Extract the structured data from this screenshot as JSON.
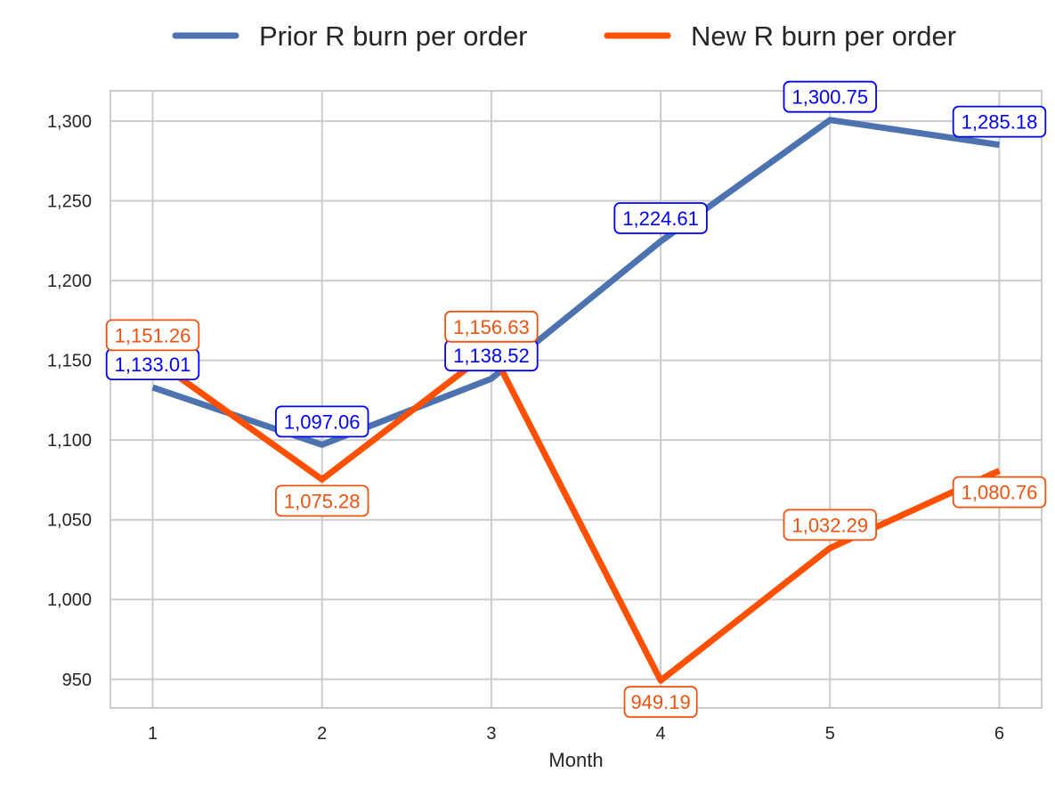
{
  "chart_data": {
    "type": "line",
    "title": "",
    "xlabel": "Month",
    "ylabel": "",
    "x": [
      1,
      2,
      3,
      4,
      5,
      6
    ],
    "x_tick_labels": [
      "1",
      "2",
      "3",
      "4",
      "5",
      "6"
    ],
    "y_ticks": [
      950,
      1000,
      1050,
      1100,
      1150,
      1200,
      1250,
      1300
    ],
    "y_tick_labels": [
      "950",
      "1,000",
      "1,050",
      "1,100",
      "1,150",
      "1,200",
      "1,250",
      "1,300"
    ],
    "xlim": [
      0.75,
      6.25
    ],
    "ylim": [
      932,
      1319
    ],
    "grid": true,
    "legend_position": "top-center",
    "series": [
      {
        "name": "Prior R burn per order",
        "color": "#4c72b0",
        "label_color": "#0000ff",
        "values": [
          1133.01,
          1097.06,
          1138.52,
          1224.61,
          1300.75,
          1285.18
        ],
        "data_labels": [
          "1,133.01",
          "1,097.06",
          "1,138.52",
          "1,224.61",
          "1,300.75",
          "1,285.18"
        ]
      },
      {
        "name": "New R burn per order",
        "color": "#ff4f00",
        "label_color": "#f0520f",
        "values": [
          1151.26,
          1075.28,
          1156.63,
          949.19,
          1032.29,
          1080.76
        ],
        "data_labels": [
          "1,151.26",
          "1,075.28",
          "1,156.63",
          "949.19",
          "1,032.29",
          "1,080.76"
        ]
      }
    ]
  }
}
